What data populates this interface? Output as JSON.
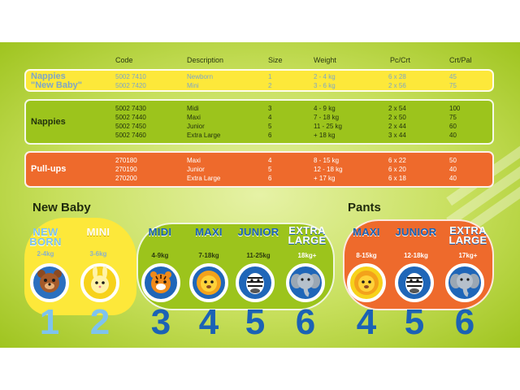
{
  "table": {
    "headers": {
      "code": "Code",
      "description": "Description",
      "size": "Size",
      "weight": "Weight",
      "pc_crt": "Pc/Crt",
      "crt_pal": "Crt/Pal"
    },
    "groups": [
      {
        "name_lines": [
          "Nappies",
          "\"New Baby\""
        ],
        "rows": [
          {
            "code": "5002 7410",
            "description": "Newborn",
            "size": "1",
            "weight": "2 - 4 kg",
            "pc_crt": "6 x 28",
            "crt_pal": "45"
          },
          {
            "code": "5002 7420",
            "description": "Mini",
            "size": "2",
            "weight": "3 - 6 kg",
            "pc_crt": "2 x 56",
            "crt_pal": "75"
          }
        ]
      },
      {
        "name_lines": [
          "Nappies"
        ],
        "rows": [
          {
            "code": "5002 7430",
            "description": "Midi",
            "size": "3",
            "weight": "4 - 9 kg",
            "pc_crt": "2 x 54",
            "crt_pal": "100"
          },
          {
            "code": "5002 7440",
            "description": "Maxi",
            "size": "4",
            "weight": "7 - 18 kg",
            "pc_crt": "2 x 50",
            "crt_pal": "75"
          },
          {
            "code": "5002 7450",
            "description": "Junior",
            "size": "5",
            "weight": "11 - 25 kg",
            "pc_crt": "2 x 44",
            "crt_pal": "60"
          },
          {
            "code": "5002 7460",
            "description": "Extra Large",
            "size": "6",
            "weight": "+ 18 kg",
            "pc_crt": "3 x 44",
            "crt_pal": "40"
          }
        ]
      },
      {
        "name_lines": [
          "Pull-ups"
        ],
        "rows": [
          {
            "code": "270180",
            "description": "Maxi",
            "size": "4",
            "weight": "8 - 15 kg",
            "pc_crt": "6 x 22",
            "crt_pal": "50"
          },
          {
            "code": "270190",
            "description": "Junior",
            "size": "5",
            "weight": "12 - 18 kg",
            "pc_crt": "6 x 20",
            "crt_pal": "40"
          },
          {
            "code": "270200",
            "description": "Extra Large",
            "size": "6",
            "weight": "+ 17 kg",
            "pc_crt": "6 x 18",
            "crt_pal": "40"
          }
        ]
      }
    ]
  },
  "sections": {
    "new_baby": "New Baby",
    "pants": "Pants"
  },
  "sizes": [
    {
      "label_lines": [
        "NEW",
        "BORN"
      ],
      "weight": "2-4kg",
      "number": "1",
      "animal": "bear"
    },
    {
      "label_lines": [
        "MINI"
      ],
      "weight": "3-6kg",
      "number": "2",
      "animal": "bunny"
    },
    {
      "label_lines": [
        "MIDI"
      ],
      "weight": "4-9kg",
      "number": "3",
      "animal": "tiger"
    },
    {
      "label_lines": [
        "MAXI"
      ],
      "weight": "7-18kg",
      "number": "4",
      "animal": "lion"
    },
    {
      "label_lines": [
        "JUNIOR"
      ],
      "weight": "11-25kg",
      "number": "5",
      "animal": "zebra"
    },
    {
      "label_lines": [
        "EXTRA",
        "LARGE"
      ],
      "weight": "18kg+",
      "number": "6",
      "animal": "elephant"
    },
    {
      "label_lines": [
        "MAXI"
      ],
      "weight": "8-15kg",
      "number": "4",
      "animal": "lion"
    },
    {
      "label_lines": [
        "JUNIOR"
      ],
      "weight": "12-18kg",
      "number": "5",
      "animal": "zebra"
    },
    {
      "label_lines": [
        "EXTRA",
        "LARGE"
      ],
      "weight": "17kg+",
      "number": "6",
      "animal": "elephant"
    }
  ],
  "colors": {
    "yellow_band": "#fde83a",
    "green_band": "#9cc41c",
    "orange_band": "#ee6a2c",
    "blue_text": "#1b62b5",
    "light_blue_text": "#7ec3ee"
  }
}
